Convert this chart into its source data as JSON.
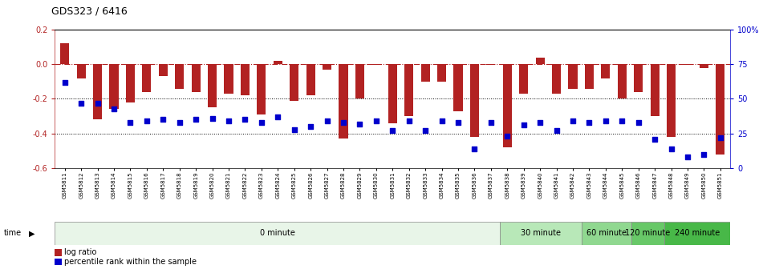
{
  "title": "GDS323 / 6416",
  "samples": [
    "GSM5811",
    "GSM5812",
    "GSM5813",
    "GSM5814",
    "GSM5815",
    "GSM5816",
    "GSM5817",
    "GSM5818",
    "GSM5819",
    "GSM5820",
    "GSM5821",
    "GSM5822",
    "GSM5823",
    "GSM5824",
    "GSM5825",
    "GSM5826",
    "GSM5827",
    "GSM5828",
    "GSM5829",
    "GSM5830",
    "GSM5831",
    "GSM5832",
    "GSM5833",
    "GSM5834",
    "GSM5835",
    "GSM5836",
    "GSM5837",
    "GSM5838",
    "GSM5839",
    "GSM5840",
    "GSM5841",
    "GSM5842",
    "GSM5843",
    "GSM5844",
    "GSM5845",
    "GSM5846",
    "GSM5847",
    "GSM5848",
    "GSM5849",
    "GSM5850",
    "GSM5851"
  ],
  "log_ratio": [
    0.12,
    -0.08,
    -0.32,
    -0.26,
    -0.22,
    -0.16,
    -0.07,
    -0.14,
    -0.16,
    -0.25,
    -0.17,
    -0.18,
    -0.29,
    0.02,
    -0.21,
    -0.18,
    -0.03,
    -0.43,
    -0.2,
    -0.003,
    -0.34,
    -0.3,
    -0.1,
    -0.1,
    -0.27,
    -0.42,
    -0.005,
    -0.48,
    -0.17,
    0.04,
    -0.17,
    -0.14,
    -0.14,
    -0.08,
    -0.2,
    -0.16,
    -0.3,
    -0.42,
    -0.005,
    -0.02,
    -0.52
  ],
  "percentile": [
    62,
    47,
    47,
    43,
    33,
    34,
    35,
    33,
    35,
    36,
    34,
    35,
    33,
    37,
    28,
    30,
    34,
    33,
    32,
    34,
    27,
    34,
    27,
    34,
    33,
    14,
    33,
    23,
    31,
    33,
    27,
    34,
    33,
    34,
    34,
    33,
    21,
    14,
    8,
    10,
    22
  ],
  "time_groups": [
    {
      "label": "0 minute",
      "start": 0,
      "end": 27,
      "color": "#e8f5e8"
    },
    {
      "label": "30 minute",
      "start": 27,
      "end": 32,
      "color": "#b8e8b8"
    },
    {
      "label": "60 minute",
      "start": 32,
      "end": 35,
      "color": "#90d890"
    },
    {
      "label": "120 minute",
      "start": 35,
      "end": 37,
      "color": "#68c868"
    },
    {
      "label": "240 minute",
      "start": 37,
      "end": 41,
      "color": "#48b848"
    }
  ],
  "bar_color": "#b22222",
  "dot_color": "#0000cc",
  "ylim_left": [
    -0.6,
    0.2
  ],
  "ylim_right": [
    0,
    100
  ],
  "yticks_left": [
    -0.6,
    -0.4,
    -0.2,
    0.0,
    0.2
  ],
  "yticks_right": [
    0,
    25,
    50,
    75,
    100
  ],
  "ytick_labels_right": [
    "0",
    "25",
    "50",
    "75",
    "100%"
  ],
  "dotted_lines": [
    -0.2,
    -0.4
  ],
  "zero_line": 0.0,
  "legend_items": [
    {
      "label": "log ratio",
      "color": "#b22222"
    },
    {
      "label": "percentile rank within the sample",
      "color": "#0000cc"
    }
  ]
}
